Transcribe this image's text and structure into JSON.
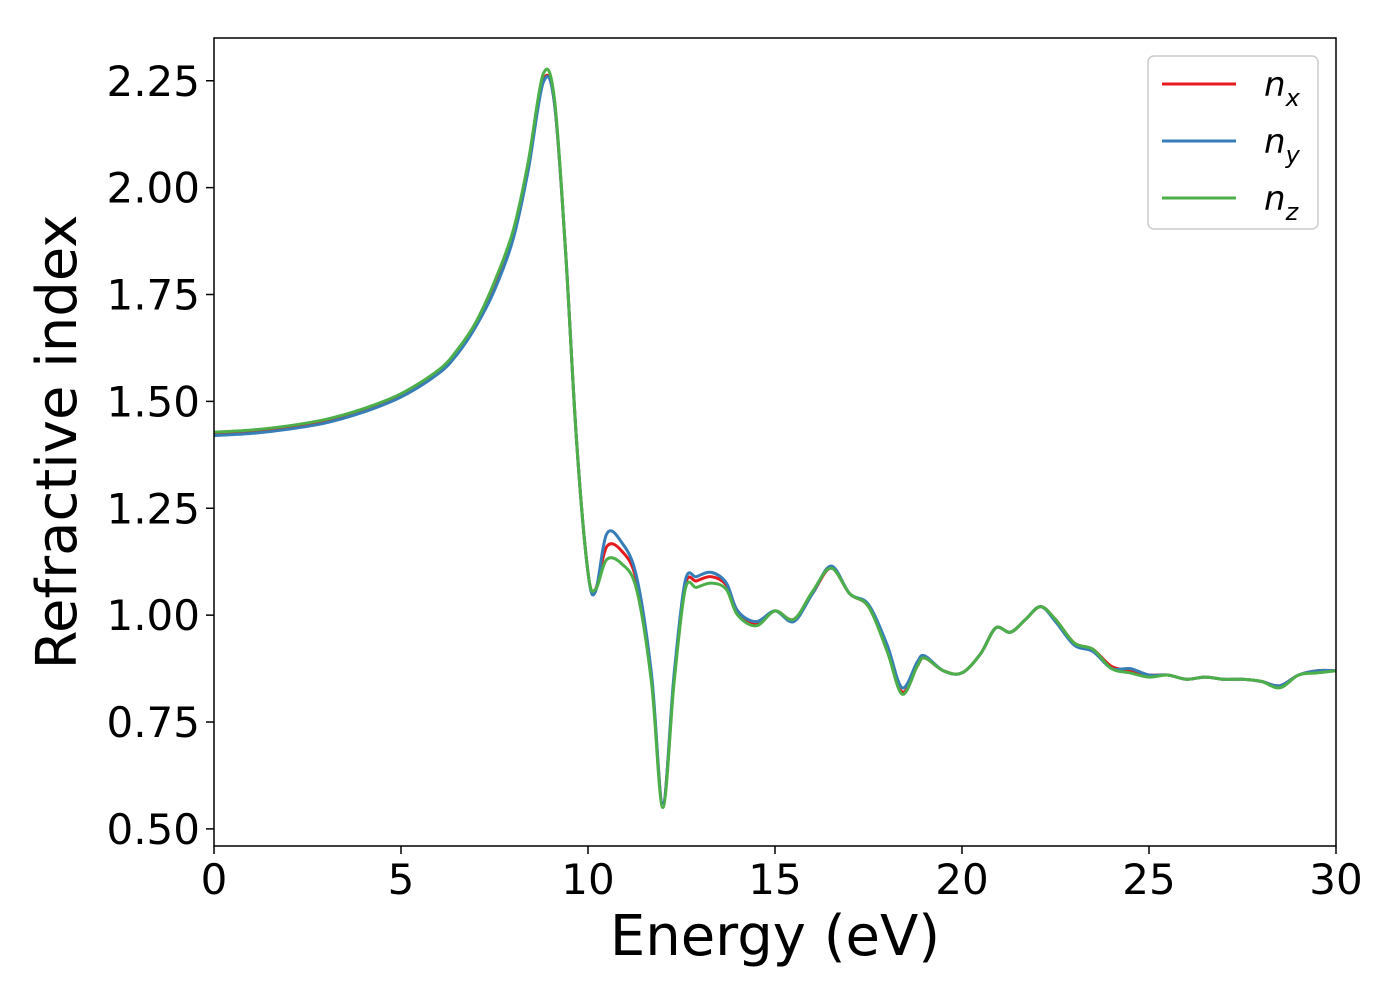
{
  "chart_data": {
    "type": "line",
    "title": "",
    "xlabel": "Energy (eV)",
    "ylabel": "Refractive index",
    "xlim": [
      0,
      30
    ],
    "ylim": [
      0.46,
      2.35
    ],
    "xticks": [
      0,
      5,
      10,
      15,
      20,
      25,
      30
    ],
    "xtick_labels": [
      "0",
      "5",
      "10",
      "15",
      "20",
      "25",
      "30"
    ],
    "yticks": [
      0.5,
      0.75,
      1.0,
      1.25,
      1.5,
      1.75,
      2.0,
      2.25
    ],
    "ytick_labels": [
      "0.50",
      "0.75",
      "1.00",
      "1.25",
      "1.50",
      "1.75",
      "2.00",
      "2.25"
    ],
    "grid": false,
    "legend_position": "top-right",
    "series": [
      {
        "name": "n_x",
        "label_base": "n",
        "label_sub": "x",
        "color": "#e41a1c",
        "x": [
          0,
          1,
          2,
          3,
          4,
          5,
          6,
          6.5,
          7,
          7.5,
          8,
          8.4,
          8.8,
          9.1,
          9.4,
          9.7,
          10.0,
          10.2,
          10.5,
          10.9,
          11.3,
          11.7,
          12.0,
          12.3,
          12.6,
          12.9,
          13.3,
          13.7,
          14.0,
          14.5,
          15.0,
          15.5,
          16.0,
          16.5,
          17.0,
          17.5,
          18.0,
          18.4,
          18.8,
          19.0,
          19.5,
          20.0,
          20.5,
          20.9,
          21.3,
          21.7,
          22.1,
          22.5,
          23.0,
          23.5,
          24.0,
          24.5,
          25.0,
          25.5,
          26.0,
          26.5,
          27.0,
          27.5,
          28.0,
          28.5,
          29.0,
          29.5,
          30
        ],
        "values": [
          1.425,
          1.43,
          1.44,
          1.455,
          1.48,
          1.515,
          1.57,
          1.615,
          1.68,
          1.77,
          1.89,
          2.05,
          2.25,
          2.2,
          1.85,
          1.4,
          1.1,
          1.06,
          1.16,
          1.15,
          1.08,
          0.85,
          0.56,
          0.85,
          1.07,
          1.08,
          1.09,
          1.07,
          1.01,
          0.98,
          1.01,
          0.99,
          1.05,
          1.11,
          1.05,
          1.02,
          0.92,
          0.82,
          0.88,
          0.9,
          0.87,
          0.865,
          0.91,
          0.97,
          0.96,
          0.99,
          1.02,
          0.99,
          0.935,
          0.92,
          0.88,
          0.87,
          0.86,
          0.86,
          0.85,
          0.855,
          0.85,
          0.85,
          0.845,
          0.835,
          0.86,
          0.87,
          0.87
        ]
      },
      {
        "name": "n_y",
        "label_base": "n",
        "label_sub": "y",
        "color": "#377eb8",
        "x": [
          0,
          1,
          2,
          3,
          4,
          5,
          6,
          6.5,
          7,
          7.5,
          8,
          8.4,
          8.8,
          9.1,
          9.4,
          9.7,
          10.0,
          10.2,
          10.5,
          10.9,
          11.3,
          11.7,
          12.0,
          12.3,
          12.6,
          12.9,
          13.3,
          13.7,
          14.0,
          14.5,
          15.0,
          15.5,
          16.0,
          16.5,
          17.0,
          17.5,
          18.0,
          18.4,
          18.8,
          19.0,
          19.5,
          20.0,
          20.5,
          20.9,
          21.3,
          21.7,
          22.1,
          22.5,
          23.0,
          23.5,
          24.0,
          24.5,
          25.0,
          25.5,
          26.0,
          26.5,
          27.0,
          27.5,
          28.0,
          28.5,
          29.0,
          29.5,
          30
        ],
        "values": [
          1.42,
          1.425,
          1.435,
          1.45,
          1.475,
          1.51,
          1.565,
          1.61,
          1.675,
          1.76,
          1.88,
          2.04,
          2.245,
          2.2,
          1.85,
          1.4,
          1.1,
          1.055,
          1.19,
          1.17,
          1.09,
          0.86,
          0.56,
          0.86,
          1.08,
          1.09,
          1.1,
          1.075,
          1.01,
          0.985,
          1.01,
          0.985,
          1.05,
          1.115,
          1.05,
          1.025,
          0.93,
          0.83,
          0.89,
          0.905,
          0.87,
          0.865,
          0.91,
          0.97,
          0.96,
          0.99,
          1.02,
          0.985,
          0.93,
          0.915,
          0.875,
          0.875,
          0.86,
          0.86,
          0.85,
          0.855,
          0.85,
          0.85,
          0.845,
          0.835,
          0.86,
          0.87,
          0.87
        ]
      },
      {
        "name": "n_z",
        "label_base": "n",
        "label_sub": "z",
        "color": "#4daf4a",
        "x": [
          0,
          1,
          2,
          3,
          4,
          5,
          6,
          6.5,
          7,
          7.5,
          8,
          8.4,
          8.8,
          9.1,
          9.4,
          9.7,
          10.0,
          10.2,
          10.5,
          10.9,
          11.3,
          11.7,
          12.0,
          12.3,
          12.6,
          12.9,
          13.3,
          13.7,
          14.0,
          14.5,
          15.0,
          15.5,
          16.0,
          16.5,
          17.0,
          17.5,
          18.0,
          18.4,
          18.8,
          19.0,
          19.5,
          20.0,
          20.5,
          20.9,
          21.3,
          21.7,
          22.1,
          22.5,
          23.0,
          23.5,
          24.0,
          24.5,
          25.0,
          25.5,
          26.0,
          26.5,
          27.0,
          27.5,
          28.0,
          28.5,
          29.0,
          29.5,
          30
        ],
        "values": [
          1.428,
          1.433,
          1.443,
          1.458,
          1.483,
          1.518,
          1.573,
          1.62,
          1.685,
          1.78,
          1.9,
          2.06,
          2.265,
          2.21,
          1.85,
          1.4,
          1.1,
          1.06,
          1.13,
          1.12,
          1.06,
          0.84,
          0.55,
          0.84,
          1.06,
          1.065,
          1.075,
          1.06,
          1.0,
          0.975,
          1.01,
          0.99,
          1.055,
          1.11,
          1.05,
          1.02,
          0.915,
          0.815,
          0.88,
          0.9,
          0.87,
          0.865,
          0.91,
          0.97,
          0.96,
          0.99,
          1.02,
          0.99,
          0.935,
          0.92,
          0.875,
          0.865,
          0.855,
          0.86,
          0.85,
          0.855,
          0.85,
          0.85,
          0.845,
          0.83,
          0.86,
          0.865,
          0.87
        ]
      }
    ]
  }
}
